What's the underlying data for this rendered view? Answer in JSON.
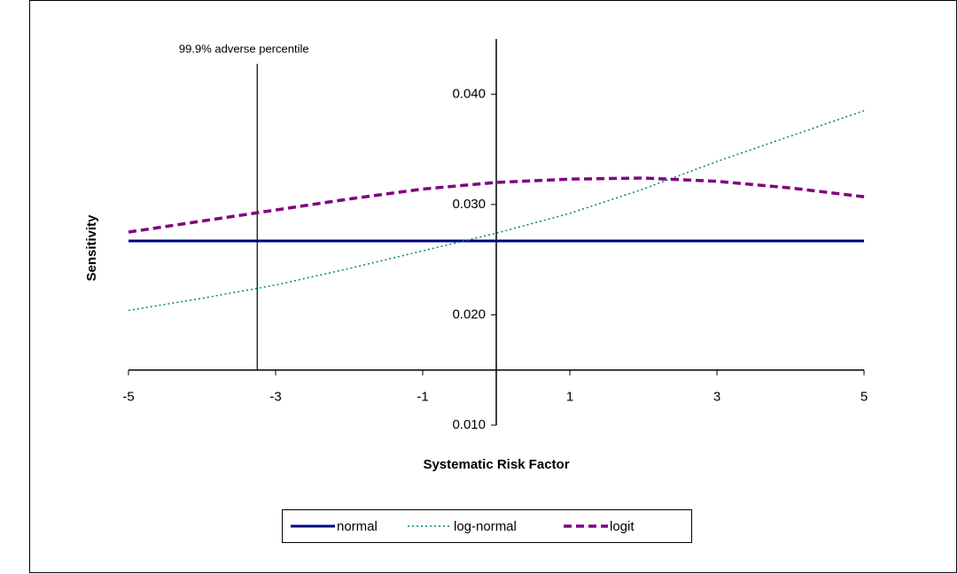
{
  "chart_data": {
    "type": "line",
    "y_axis_title": "Sensitivity",
    "x_axis_title": "Systematic Risk Factor",
    "x": [
      -5,
      -4,
      -3,
      -2,
      -1,
      0,
      1,
      2,
      3,
      4,
      5
    ],
    "series": [
      {
        "name": "normal",
        "color": "#000080",
        "style": "solid",
        "values": [
          0.0267,
          0.0267,
          0.0267,
          0.0267,
          0.0267,
          0.0267,
          0.0267,
          0.0267,
          0.0267,
          0.0267,
          0.0267
        ]
      },
      {
        "name": "log-normal",
        "color": "#008080",
        "style": "dotted",
        "values": [
          0.0204,
          0.0215,
          0.0227,
          0.0242,
          0.0258,
          0.0274,
          0.0292,
          0.0314,
          0.0339,
          0.0362,
          0.0385
        ]
      },
      {
        "name": "logit",
        "color": "#800080",
        "style": "dashed",
        "values": [
          0.0275,
          0.0285,
          0.0295,
          0.0305,
          0.0314,
          0.032,
          0.0323,
          0.0324,
          0.0321,
          0.0315,
          0.0307
        ]
      }
    ],
    "xlim": [
      -5,
      5
    ],
    "xticks": [
      -5,
      -3,
      -1,
      1,
      3,
      5
    ],
    "ylim": [
      0.01,
      0.045
    ],
    "yticks": [
      {
        "value": 0.01,
        "label": "0.010"
      },
      {
        "value": 0.02,
        "label": "0.020"
      },
      {
        "value": 0.03,
        "label": "0.030"
      },
      {
        "value": 0.04,
        "label": "0.040"
      }
    ],
    "x_axis_at": 0.015,
    "y_axis_at": 0,
    "annotation": {
      "text": "99.9% adverse percentile",
      "x": -3.25
    },
    "legend": "bottom"
  }
}
